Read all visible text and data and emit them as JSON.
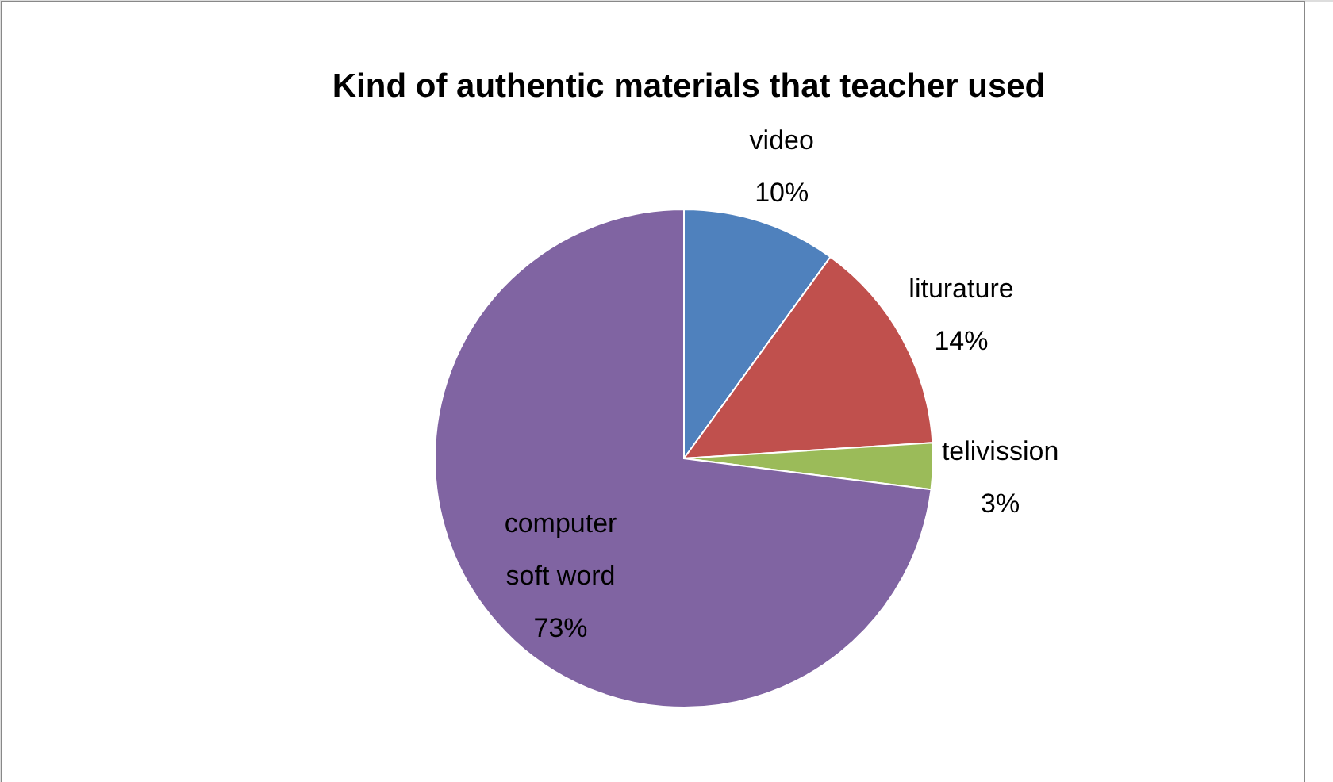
{
  "chart_data": {
    "type": "pie",
    "title": "Kind of authentic materials that teacher used",
    "categories": [
      "video",
      "liturature",
      "telivission",
      "computer soft word"
    ],
    "values": [
      10,
      14,
      3,
      73
    ],
    "value_labels": [
      "10%",
      "14%",
      "3%",
      "73%"
    ],
    "colors": [
      "#4f81bd",
      "#c0504d",
      "#9bbb59",
      "#8064a2"
    ]
  }
}
